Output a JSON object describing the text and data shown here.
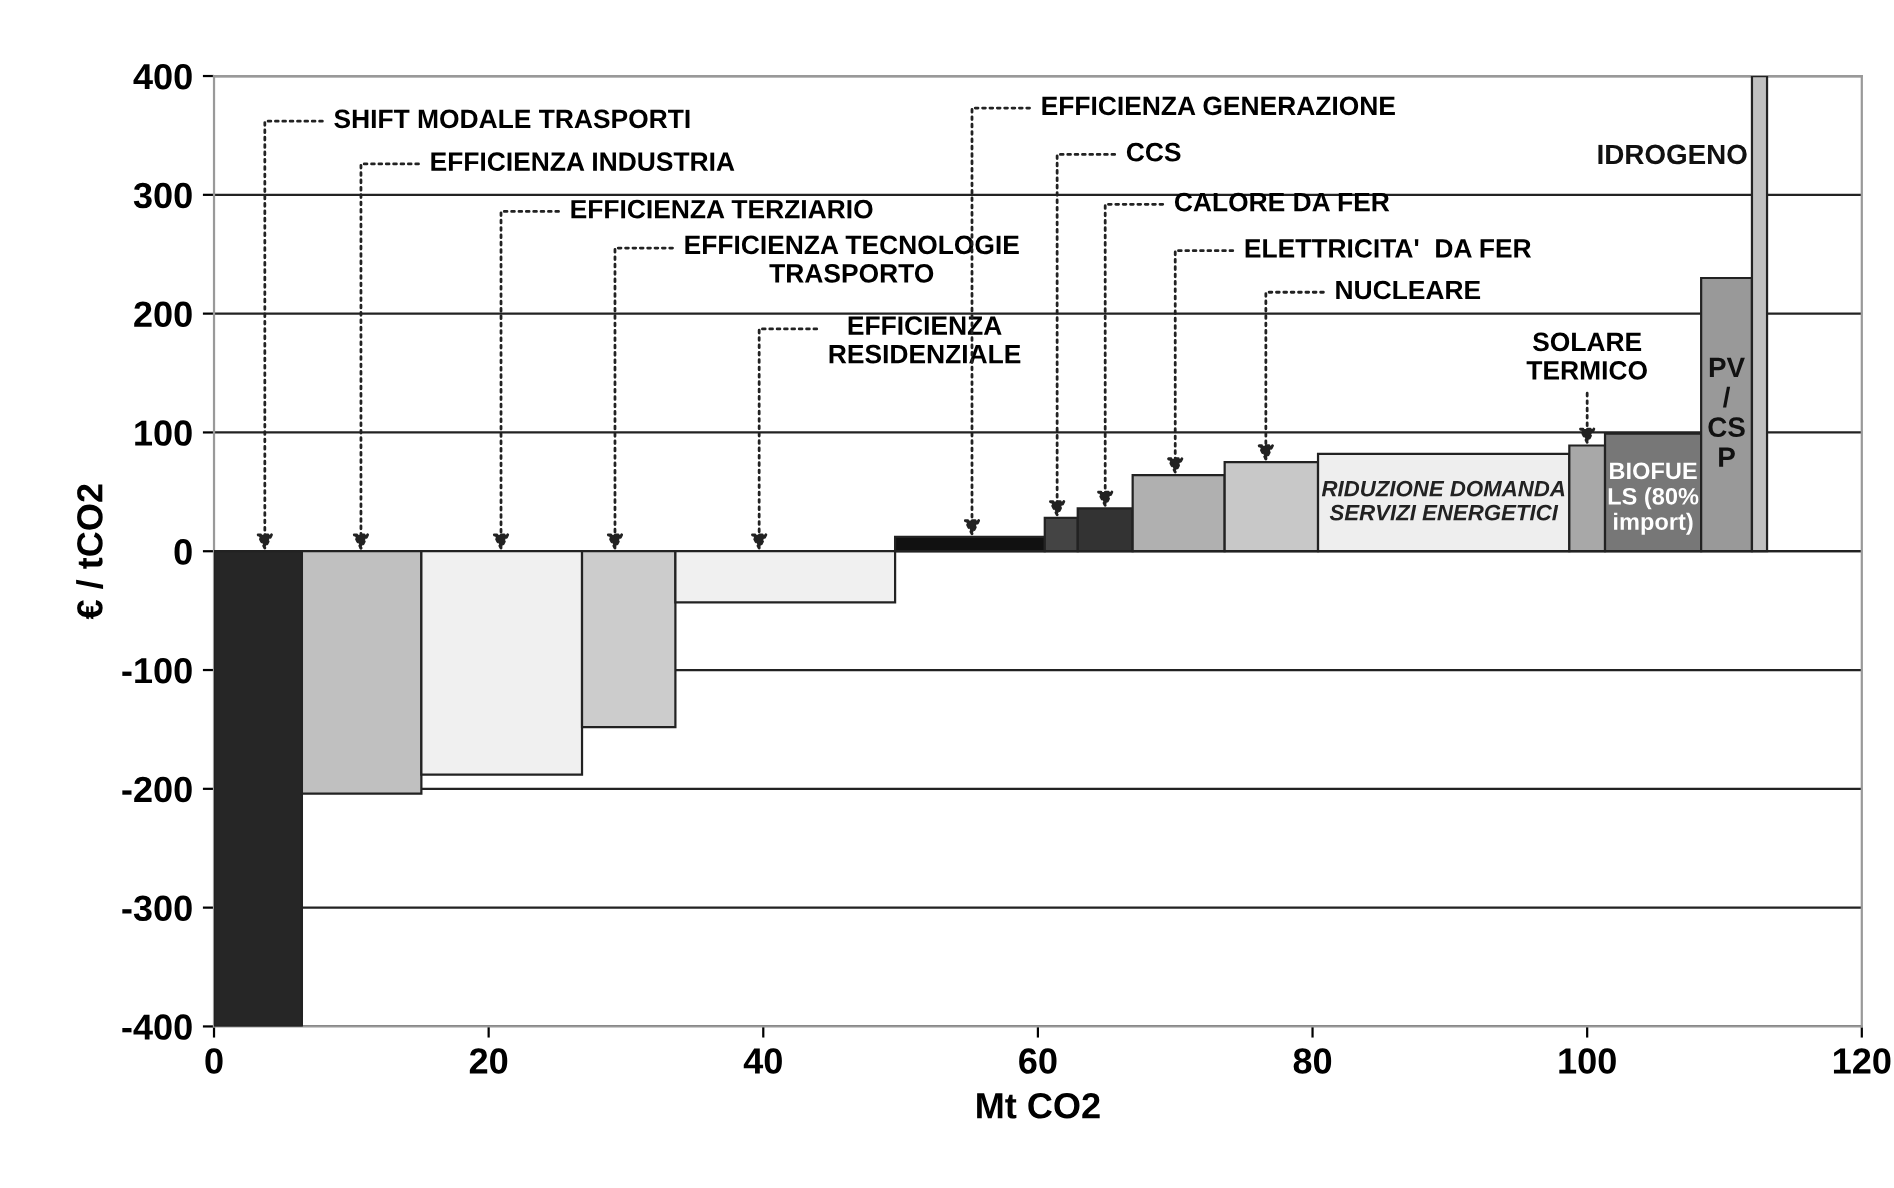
{
  "chart_data": {
    "type": "histogram",
    "xlabel": "Mt CO2",
    "ylabel": "€ / tCO2",
    "bins": [
      0,
      6.4,
      15.1,
      26.8,
      33.6,
      49.6,
      60.5,
      62.9,
      66.9,
      73.6,
      80.4,
      98.7,
      101.3,
      108.3,
      112,
      113.1
    ],
    "values": [
      -400,
      -204,
      -188,
      -148,
      -43,
      12,
      28,
      36,
      64,
      75,
      82,
      89,
      99,
      230,
      400
    ],
    "colors": [
      "#262626",
      "#c0c0c0",
      "#f0f0f0",
      "#cccccc",
      "#f0f0f0",
      "#111111",
      "#444444",
      "#333333",
      "#b0b0b0",
      "#c8c8c8",
      "#eeeeee",
      "#a8a8a8",
      "#777777",
      "#999999",
      "#c0c0c0"
    ],
    "xlim": [
      0,
      120
    ],
    "ylim": [
      -400,
      400
    ],
    "xticks": [
      0,
      20,
      40,
      60,
      80,
      100,
      120
    ],
    "yticks": [
      -400,
      -300,
      -200,
      -100,
      0,
      100,
      200,
      300,
      400
    ],
    "grid": "y",
    "annotations": [
      {
        "text": "SHIFT MODALE TRASPORTI",
        "x": 3.7,
        "y": 0
      },
      {
        "text": "EFFICIENZA INDUSTRIA",
        "x": 10.7,
        "y": 0
      },
      {
        "text": "EFFICIENZA TERZIARIO",
        "x": 20.9,
        "y": 0
      },
      {
        "text": "EFFICIENZA TECNOLOGIE\nTRASPORTO",
        "x": 29.2,
        "y": 0
      },
      {
        "text": "EFFICIENZA\nRESIDENZIALE",
        "x": 39.7,
        "y": 0
      },
      {
        "text": "EFFICIENZA GENERAZIONE",
        "x": 55.2,
        "y": 12
      },
      {
        "text": "CCS",
        "x": 61.4,
        "y": 28
      },
      {
        "text": "CALORE DA FER",
        "x": 64.9,
        "y": 36
      },
      {
        "text": "ELETTRICITA'  DA FER",
        "x": 70,
        "y": 64
      },
      {
        "text": "NUCLEARE",
        "x": 76.6,
        "y": 75
      },
      {
        "text": "SOLARE\nTERMICO",
        "x": 100,
        "y": 89
      },
      "RIDUZIONE DOMANDA\nSERVIZI ENERGETICI",
      "BIOFUE\nLS (80%\nimport)",
      "PV\n/\nCS\nP",
      "IDROGENO"
    ]
  }
}
